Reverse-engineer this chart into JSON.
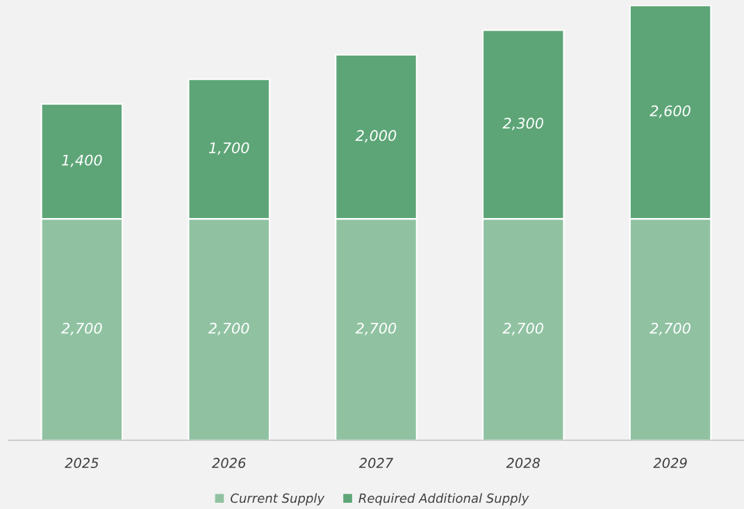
{
  "chart_data": {
    "type": "bar",
    "stacked": true,
    "categories": [
      "2025",
      "2026",
      "2027",
      "2028",
      "2029"
    ],
    "series": [
      {
        "name": "Current Supply",
        "color": "#90c2a2",
        "values": [
          2700,
          2700,
          2700,
          2700,
          2700
        ],
        "value_labels": [
          "2,700",
          "2,700",
          "2,700",
          "2,700",
          "2,700"
        ]
      },
      {
        "name": "Required Additional Supply",
        "color": "#5da577",
        "values": [
          1400,
          1700,
          2000,
          2300,
          2600
        ],
        "value_labels": [
          "1,400",
          "1,700",
          "2,000",
          "2,300",
          "2,600"
        ]
      }
    ],
    "legend": "bottom",
    "grid": false,
    "tick_labels": "x"
  }
}
